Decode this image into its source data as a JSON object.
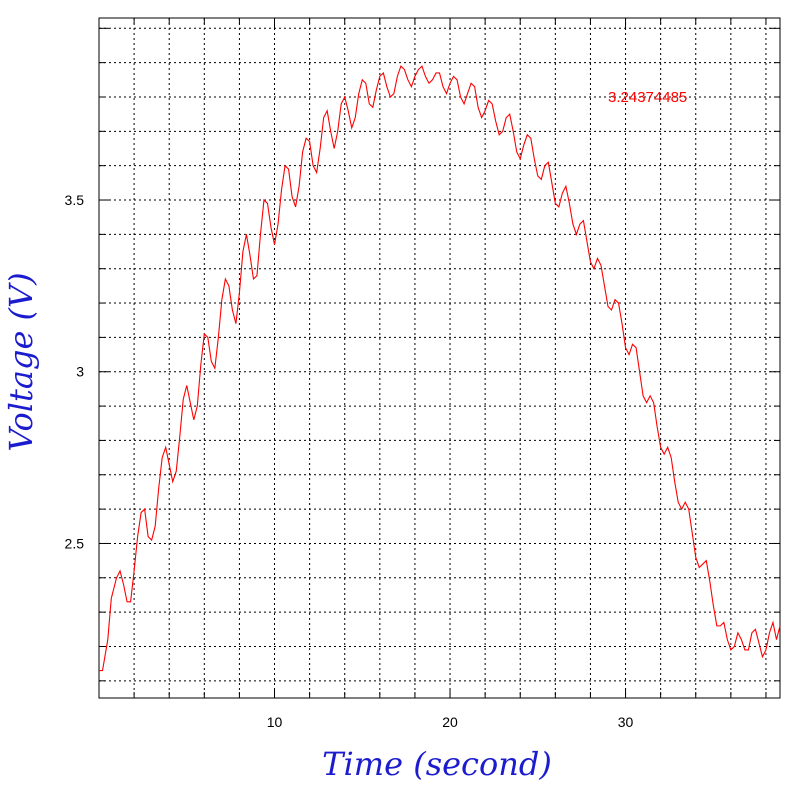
{
  "chart_data": {
    "type": "line",
    "title": "",
    "xlabel": "Time (second)",
    "ylabel": "Voltage (V)",
    "xlim": [
      0,
      38.8
    ],
    "ylim": [
      2.05,
      4.03
    ],
    "x_ticks": [
      10,
      20,
      30
    ],
    "x_tick_labels": [
      "10",
      "20",
      "30"
    ],
    "y_ticks": [
      2.5,
      3.0,
      3.5
    ],
    "y_tick_labels": [
      "2.5",
      "3",
      "3.5"
    ],
    "x_minor_step": 2,
    "y_minor_step": 0.1,
    "grid": true,
    "annotation": "3.24374485",
    "colors": {
      "series": "#ff0000",
      "axis_title": "#1c1ccf",
      "grid": "#000000",
      "text": "#000000"
    },
    "series": [
      {
        "points": [
          [
            0.0,
            2.13
          ],
          [
            0.2,
            2.13
          ],
          [
            0.5,
            2.22
          ],
          [
            0.7,
            2.34
          ],
          [
            1.0,
            2.4
          ],
          [
            1.2,
            2.42
          ],
          [
            1.4,
            2.38
          ],
          [
            1.6,
            2.33
          ],
          [
            1.8,
            2.33
          ],
          [
            2.0,
            2.42
          ],
          [
            2.2,
            2.52
          ],
          [
            2.4,
            2.59
          ],
          [
            2.6,
            2.6
          ],
          [
            2.8,
            2.52
          ],
          [
            3.0,
            2.51
          ],
          [
            3.2,
            2.55
          ],
          [
            3.4,
            2.66
          ],
          [
            3.6,
            2.75
          ],
          [
            3.8,
            2.78
          ],
          [
            4.0,
            2.73
          ],
          [
            4.2,
            2.68
          ],
          [
            4.4,
            2.71
          ],
          [
            4.6,
            2.81
          ],
          [
            4.8,
            2.92
          ],
          [
            5.0,
            2.96
          ],
          [
            5.2,
            2.91
          ],
          [
            5.4,
            2.86
          ],
          [
            5.6,
            2.9
          ],
          [
            5.8,
            3.02
          ],
          [
            6.0,
            3.11
          ],
          [
            6.2,
            3.1
          ],
          [
            6.4,
            3.03
          ],
          [
            6.6,
            3.01
          ],
          [
            6.8,
            3.1
          ],
          [
            7.0,
            3.21
          ],
          [
            7.2,
            3.27
          ],
          [
            7.4,
            3.25
          ],
          [
            7.6,
            3.18
          ],
          [
            7.8,
            3.14
          ],
          [
            8.0,
            3.23
          ],
          [
            8.2,
            3.35
          ],
          [
            8.4,
            3.4
          ],
          [
            8.6,
            3.34
          ],
          [
            8.8,
            3.27
          ],
          [
            9.0,
            3.28
          ],
          [
            9.2,
            3.4
          ],
          [
            9.4,
            3.5
          ],
          [
            9.6,
            3.49
          ],
          [
            9.8,
            3.42
          ],
          [
            10.0,
            3.37
          ],
          [
            10.2,
            3.43
          ],
          [
            10.4,
            3.53
          ],
          [
            10.6,
            3.6
          ],
          [
            10.8,
            3.59
          ],
          [
            11.0,
            3.51
          ],
          [
            11.2,
            3.48
          ],
          [
            11.4,
            3.54
          ],
          [
            11.6,
            3.64
          ],
          [
            11.8,
            3.68
          ],
          [
            12.0,
            3.67
          ],
          [
            12.2,
            3.6
          ],
          [
            12.4,
            3.58
          ],
          [
            12.6,
            3.65
          ],
          [
            12.8,
            3.74
          ],
          [
            13.0,
            3.76
          ],
          [
            13.2,
            3.7
          ],
          [
            13.4,
            3.65
          ],
          [
            13.6,
            3.7
          ],
          [
            13.8,
            3.78
          ],
          [
            14.0,
            3.8
          ],
          [
            14.2,
            3.76
          ],
          [
            14.4,
            3.71
          ],
          [
            14.6,
            3.74
          ],
          [
            14.8,
            3.81
          ],
          [
            15.0,
            3.85
          ],
          [
            15.2,
            3.84
          ],
          [
            15.4,
            3.78
          ],
          [
            15.6,
            3.77
          ],
          [
            15.8,
            3.82
          ],
          [
            16.0,
            3.86
          ],
          [
            16.2,
            3.87
          ],
          [
            16.4,
            3.83
          ],
          [
            16.6,
            3.8
          ],
          [
            16.8,
            3.81
          ],
          [
            17.0,
            3.86
          ],
          [
            17.2,
            3.89
          ],
          [
            17.4,
            3.88
          ],
          [
            17.6,
            3.85
          ],
          [
            17.8,
            3.83
          ],
          [
            18.0,
            3.86
          ],
          [
            18.2,
            3.88
          ],
          [
            18.4,
            3.89
          ],
          [
            18.6,
            3.86
          ],
          [
            18.8,
            3.84
          ],
          [
            19.0,
            3.85
          ],
          [
            19.2,
            3.87
          ],
          [
            19.4,
            3.87
          ],
          [
            19.6,
            3.83
          ],
          [
            19.8,
            3.81
          ],
          [
            20.0,
            3.84
          ],
          [
            20.2,
            3.86
          ],
          [
            20.4,
            3.85
          ],
          [
            20.6,
            3.8
          ],
          [
            20.8,
            3.78
          ],
          [
            21.0,
            3.81
          ],
          [
            21.2,
            3.84
          ],
          [
            21.4,
            3.83
          ],
          [
            21.6,
            3.77
          ],
          [
            21.8,
            3.74
          ],
          [
            22.0,
            3.76
          ],
          [
            22.2,
            3.79
          ],
          [
            22.4,
            3.78
          ],
          [
            22.6,
            3.73
          ],
          [
            22.8,
            3.69
          ],
          [
            23.0,
            3.7
          ],
          [
            23.2,
            3.74
          ],
          [
            23.4,
            3.75
          ],
          [
            23.6,
            3.7
          ],
          [
            23.8,
            3.64
          ],
          [
            24.0,
            3.62
          ],
          [
            24.2,
            3.66
          ],
          [
            24.4,
            3.69
          ],
          [
            24.6,
            3.68
          ],
          [
            24.8,
            3.62
          ],
          [
            25.0,
            3.57
          ],
          [
            25.2,
            3.56
          ],
          [
            25.4,
            3.6
          ],
          [
            25.6,
            3.61
          ],
          [
            25.8,
            3.55
          ],
          [
            26.0,
            3.49
          ],
          [
            26.2,
            3.48
          ],
          [
            26.4,
            3.52
          ],
          [
            26.6,
            3.54
          ],
          [
            26.8,
            3.49
          ],
          [
            27.0,
            3.43
          ],
          [
            27.2,
            3.4
          ],
          [
            27.4,
            3.43
          ],
          [
            27.6,
            3.44
          ],
          [
            27.8,
            3.38
          ],
          [
            28.0,
            3.32
          ],
          [
            28.2,
            3.3
          ],
          [
            28.4,
            3.33
          ],
          [
            28.6,
            3.31
          ],
          [
            28.8,
            3.25
          ],
          [
            29.0,
            3.19
          ],
          [
            29.2,
            3.18
          ],
          [
            29.4,
            3.21
          ],
          [
            29.6,
            3.2
          ],
          [
            29.8,
            3.14
          ],
          [
            30.0,
            3.07
          ],
          [
            30.2,
            3.05
          ],
          [
            30.4,
            3.08
          ],
          [
            30.6,
            3.07
          ],
          [
            30.8,
            3.0
          ],
          [
            31.0,
            2.93
          ],
          [
            31.2,
            2.91
          ],
          [
            31.4,
            2.93
          ],
          [
            31.6,
            2.91
          ],
          [
            31.8,
            2.84
          ],
          [
            32.0,
            2.78
          ],
          [
            32.2,
            2.76
          ],
          [
            32.4,
            2.78
          ],
          [
            32.6,
            2.75
          ],
          [
            32.8,
            2.68
          ],
          [
            33.0,
            2.62
          ],
          [
            33.2,
            2.6
          ],
          [
            33.4,
            2.62
          ],
          [
            33.6,
            2.6
          ],
          [
            33.8,
            2.53
          ],
          [
            34.0,
            2.46
          ],
          [
            34.2,
            2.43
          ],
          [
            34.4,
            2.44
          ],
          [
            34.6,
            2.45
          ],
          [
            34.8,
            2.39
          ],
          [
            35.0,
            2.32
          ],
          [
            35.2,
            2.26
          ],
          [
            35.4,
            2.26
          ],
          [
            35.6,
            2.27
          ],
          [
            35.8,
            2.22
          ],
          [
            36.0,
            2.19
          ],
          [
            36.2,
            2.2
          ],
          [
            36.4,
            2.24
          ],
          [
            36.6,
            2.22
          ],
          [
            36.8,
            2.19
          ],
          [
            37.0,
            2.19
          ],
          [
            37.2,
            2.24
          ],
          [
            37.4,
            2.25
          ],
          [
            37.6,
            2.21
          ],
          [
            37.8,
            2.17
          ],
          [
            38.0,
            2.19
          ],
          [
            38.2,
            2.24
          ],
          [
            38.4,
            2.27
          ],
          [
            38.6,
            2.22
          ],
          [
            38.8,
            2.26
          ]
        ]
      }
    ]
  }
}
